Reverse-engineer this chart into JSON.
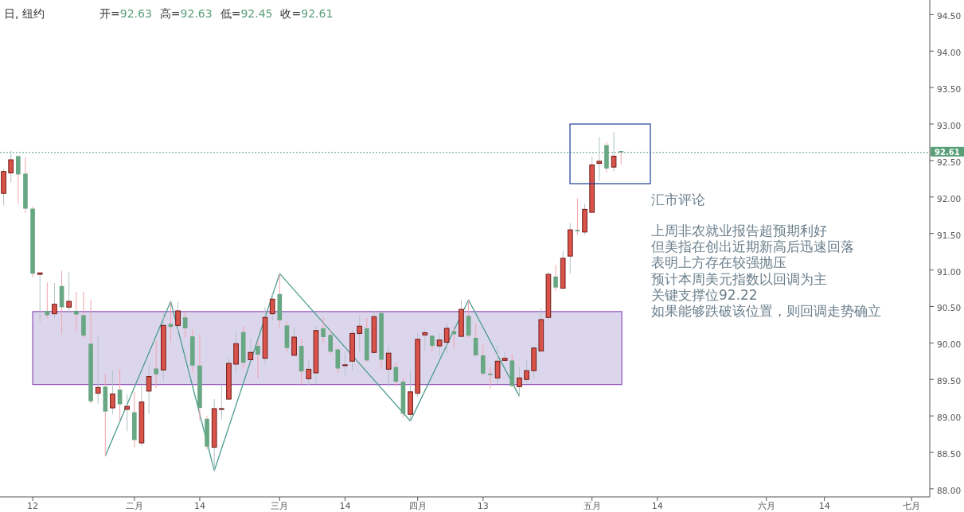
{
  "chart_data": {
    "type": "candlestick",
    "title": "日, 纽约",
    "subtitle": "开=92.63 高=92.63 低=92.45 收=92.61",
    "categories": [
      null,
      null,
      null,
      null,
      "12",
      null,
      null,
      null,
      null,
      null,
      null,
      null,
      null,
      null,
      null,
      null,
      null,
      null,
      "二月",
      null,
      null,
      null,
      null,
      null,
      null,
      null,
      null,
      "14",
      null,
      null,
      null,
      null,
      null,
      null,
      null,
      null,
      null,
      null,
      "三月",
      null,
      null,
      null,
      null,
      null,
      null,
      null,
      null,
      "14",
      null,
      null,
      null,
      null,
      null,
      null,
      null,
      null,
      null,
      "四月",
      null,
      null,
      null,
      null,
      null,
      null,
      null,
      null,
      "13",
      null,
      null,
      null,
      null,
      null,
      null,
      null,
      null,
      null,
      null,
      null,
      null,
      null,
      null,
      "五月",
      null,
      null,
      null,
      null,
      null,
      null,
      null,
      null,
      "14",
      null,
      null,
      null,
      null,
      null,
      null,
      null,
      null,
      null,
      null,
      null,
      null,
      null,
      null,
      "六月",
      null,
      null,
      null,
      null,
      null,
      null,
      null,
      "14",
      null,
      null,
      null,
      null,
      null,
      null,
      null,
      null,
      null,
      null,
      null,
      "七月",
      null,
      null
    ],
    "ohlc": [
      [
        92.05,
        92.38,
        91.88,
        92.35
      ],
      [
        92.33,
        92.63,
        92.2,
        92.51
      ],
      [
        92.56,
        92.57,
        91.91,
        92.31
      ],
      [
        92.32,
        92.54,
        91.78,
        91.84
      ],
      [
        91.84,
        91.87,
        90.9,
        90.95
      ],
      [
        90.94,
        90.96,
        90.28,
        90.96
      ],
      [
        90.44,
        90.83,
        90.34,
        90.38
      ],
      [
        90.4,
        90.82,
        90.34,
        90.53
      ],
      [
        90.78,
        90.99,
        90.12,
        90.49
      ],
      [
        90.49,
        90.97,
        90.41,
        90.57
      ],
      [
        90.44,
        90.7,
        90.16,
        90.39
      ],
      [
        90.38,
        90.7,
        90.06,
        90.1
      ],
      [
        89.99,
        90.59,
        89.17,
        89.2
      ],
      [
        89.31,
        90.11,
        89.17,
        89.39
      ],
      [
        89.4,
        89.58,
        88.45,
        89.06
      ],
      [
        89.11,
        89.62,
        89.02,
        89.3
      ],
      [
        89.36,
        89.64,
        88.93,
        89.16
      ],
      [
        89.09,
        89.3,
        88.79,
        89.13
      ],
      [
        89.05,
        89.33,
        88.57,
        88.67
      ],
      [
        88.63,
        89.42,
        88.59,
        89.19
      ],
      [
        89.34,
        89.7,
        89.03,
        89.54
      ],
      [
        89.65,
        90.03,
        89.38,
        89.57
      ],
      [
        89.63,
        90.4,
        89.48,
        90.24
      ],
      [
        90.26,
        90.57,
        90.01,
        90.22
      ],
      [
        90.24,
        90.56,
        90.12,
        90.44
      ],
      [
        90.35,
        90.43,
        90.07,
        90.2
      ],
      [
        90.09,
        90.18,
        89.61,
        89.69
      ],
      [
        89.69,
        90.11,
        88.94,
        89.11
      ],
      [
        88.96,
        89.0,
        88.54,
        88.58
      ],
      [
        88.57,
        89.23,
        88.25,
        89.1
      ],
      [
        89.09,
        89.43,
        88.95,
        89.1
      ],
      [
        89.23,
        89.8,
        89.22,
        89.72
      ],
      [
        89.71,
        90.15,
        89.59,
        89.99
      ],
      [
        90.15,
        90.23,
        89.65,
        89.73
      ],
      [
        89.77,
        90.06,
        89.76,
        89.87
      ],
      [
        89.96,
        90.03,
        89.51,
        89.84
      ],
      [
        89.79,
        90.49,
        89.7,
        90.35
      ],
      [
        90.4,
        90.69,
        90.31,
        90.6
      ],
      [
        90.67,
        90.95,
        90.21,
        90.31
      ],
      [
        90.24,
        90.29,
        89.88,
        89.93
      ],
      [
        89.83,
        90.22,
        89.82,
        90.08
      ],
      [
        89.96,
        90.06,
        89.43,
        89.61
      ],
      [
        89.51,
        89.77,
        89.42,
        89.64
      ],
      [
        89.59,
        90.23,
        89.44,
        90.17
      ],
      [
        90.2,
        90.35,
        90.0,
        90.08
      ],
      [
        90.11,
        90.18,
        89.84,
        89.88
      ],
      [
        89.91,
        89.93,
        89.59,
        89.65
      ],
      [
        89.69,
        89.88,
        89.56,
        89.7
      ],
      [
        89.75,
        90.17,
        89.62,
        90.13
      ],
      [
        90.13,
        90.37,
        89.89,
        90.23
      ],
      [
        90.2,
        90.34,
        89.74,
        89.76
      ],
      [
        89.87,
        90.44,
        89.85,
        90.36
      ],
      [
        90.41,
        90.41,
        89.64,
        89.77
      ],
      [
        89.64,
        89.96,
        89.4,
        89.86
      ],
      [
        89.67,
        89.73,
        89.4,
        89.47
      ],
      [
        89.47,
        89.52,
        88.98,
        89.03
      ],
      [
        89.02,
        89.63,
        88.93,
        89.33
      ],
      [
        89.31,
        90.14,
        89.26,
        90.05
      ],
      [
        90.11,
        90.18,
        89.9,
        90.14
      ],
      [
        90.1,
        90.1,
        89.88,
        89.96
      ],
      [
        89.96,
        90.14,
        89.83,
        90.04
      ],
      [
        90.01,
        90.28,
        89.86,
        90.2
      ],
      [
        90.16,
        90.22,
        89.92,
        90.12
      ],
      [
        90.09,
        90.59,
        90.08,
        90.46
      ],
      [
        90.37,
        90.59,
        90.07,
        90.1
      ],
      [
        90.07,
        90.27,
        89.82,
        89.83
      ],
      [
        89.83,
        89.97,
        89.54,
        89.58
      ],
      [
        89.58,
        89.67,
        89.37,
        89.56
      ],
      [
        89.52,
        89.96,
        89.44,
        89.75
      ],
      [
        89.76,
        89.87,
        89.75,
        89.79
      ],
      [
        89.76,
        89.85,
        89.4,
        89.41
      ],
      [
        89.4,
        89.67,
        89.27,
        89.52
      ],
      [
        89.5,
        89.77,
        89.45,
        89.62
      ],
      [
        89.62,
        89.95,
        89.51,
        89.93
      ],
      [
        89.89,
        90.47,
        89.88,
        90.32
      ],
      [
        90.35,
        90.97,
        90.32,
        90.94
      ],
      [
        90.91,
        91.07,
        90.71,
        90.76
      ],
      [
        90.75,
        91.26,
        90.75,
        91.16
      ],
      [
        91.19,
        91.64,
        90.95,
        91.55
      ],
      [
        91.55,
        91.98,
        91.48,
        91.53
      ],
      [
        91.52,
        91.91,
        91.48,
        91.83
      ],
      [
        91.79,
        92.55,
        91.79,
        92.44
      ],
      [
        92.46,
        92.82,
        92.22,
        92.49
      ],
      [
        92.71,
        92.75,
        92.34,
        92.39
      ],
      [
        92.41,
        92.89,
        92.35,
        92.56
      ],
      [
        92.63,
        92.63,
        92.45,
        92.61
      ],
      null,
      null,
      null,
      null,
      null,
      null,
      null,
      null,
      null,
      null,
      null,
      null,
      null,
      null,
      null,
      null,
      null,
      null,
      null,
      null,
      null,
      null,
      null,
      null,
      null,
      null,
      null,
      null,
      null,
      null,
      null,
      null,
      null,
      null,
      null,
      null,
      null,
      null,
      null,
      null,
      null,
      null
    ],
    "series": [
      {
        "type": "line",
        "color": "#4a9c8c",
        "values": [
          null,
          null,
          null,
          null,
          null,
          null,
          null,
          null,
          null,
          null,
          null,
          null,
          null,
          null,
          88.45,
          null,
          null,
          null,
          null,
          null,
          null,
          null,
          null,
          90.57,
          null,
          null,
          null,
          null,
          null,
          88.25,
          null,
          null,
          null,
          null,
          null,
          null,
          null,
          null,
          90.95,
          null,
          null,
          null,
          null,
          null,
          null,
          null,
          null,
          null,
          null,
          null,
          null,
          null,
          null,
          null,
          null,
          null,
          88.93,
          null,
          null,
          null,
          null,
          null,
          null,
          null,
          90.59,
          null,
          null,
          null,
          null,
          null,
          null,
          89.27,
          null,
          null,
          null,
          null,
          null,
          null,
          null,
          null,
          null,
          null,
          null,
          null,
          null,
          null,
          null,
          null,
          null,
          null,
          null,
          null,
          null,
          null,
          null,
          null,
          null,
          null,
          null,
          null,
          null,
          null,
          null,
          null,
          null,
          null,
          null,
          null,
          null,
          null,
          null,
          null,
          null,
          null,
          null,
          null,
          null,
          null,
          null,
          null,
          null,
          null,
          null,
          null,
          null,
          null,
          null,
          null
        ]
      }
    ],
    "ylim": [
      87.89,
      94.7
    ],
    "yticks": [
      {
        "value": 88,
        "label": "88.00"
      },
      {
        "value": 88.5,
        "label": "88.50"
      },
      {
        "value": 89,
        "label": "89.00"
      },
      {
        "value": 89.5,
        "label": "89.50"
      },
      {
        "value": 90,
        "label": "90.00"
      },
      {
        "value": 90.5,
        "label": "90.50"
      },
      {
        "value": 91,
        "label": "91.00"
      },
      {
        "value": 91.5,
        "label": "91.50"
      },
      {
        "value": 92,
        "label": "92.00"
      },
      {
        "value": 92.5,
        "label": "92.50"
      },
      {
        "value": 93,
        "label": "93.00"
      },
      {
        "value": 93.5,
        "label": "93.50"
      },
      {
        "value": 94,
        "label": "94.00"
      },
      {
        "value": 94.5,
        "label": "94.50"
      }
    ],
    "ref_lines": [
      {
        "axis": "y",
        "value": 92.61,
        "label": "92.61",
        "color": "#5a9e7a",
        "line_style": "dotted"
      }
    ],
    "bands": [
      {
        "axis": "y",
        "from": 89.43,
        "to": 90.43,
        "color": "#dcd6ec"
      }
    ],
    "annotations": [
      "汇市评论",
      "上周非农就业报告超预期利好",
      "但美指在创出近期新高后迅速回落",
      "表明上方存在较强抛压",
      "预计本周美元指数以回调为主",
      "关键支撑位92.22",
      "如果能够跌破该位置，则回调走势确立"
    ],
    "grid": false
  }
}
